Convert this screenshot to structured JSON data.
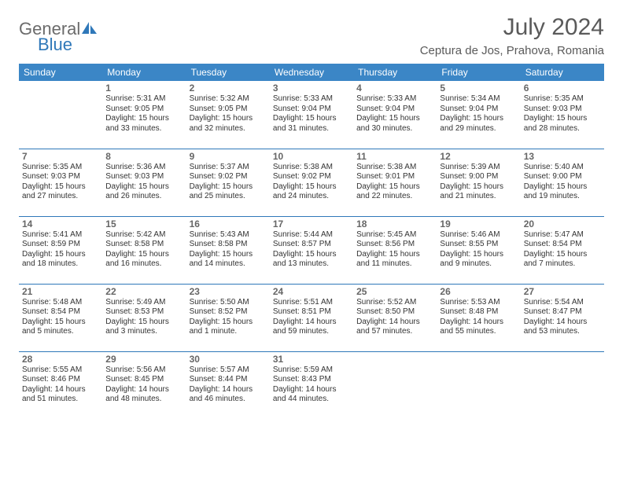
{
  "logo": {
    "general": "General",
    "blue": "Blue"
  },
  "title": "July 2024",
  "location": "Ceptura de Jos, Prahova, Romania",
  "header_bg": "#3b86c6",
  "border_color": "#2f78b9",
  "day_headers": [
    "Sunday",
    "Monday",
    "Tuesday",
    "Wednesday",
    "Thursday",
    "Friday",
    "Saturday"
  ],
  "weeks": [
    [
      null,
      {
        "n": "1",
        "sr": "Sunrise: 5:31 AM",
        "ss": "Sunset: 9:05 PM",
        "d1": "Daylight: 15 hours",
        "d2": "and 33 minutes."
      },
      {
        "n": "2",
        "sr": "Sunrise: 5:32 AM",
        "ss": "Sunset: 9:05 PM",
        "d1": "Daylight: 15 hours",
        "d2": "and 32 minutes."
      },
      {
        "n": "3",
        "sr": "Sunrise: 5:33 AM",
        "ss": "Sunset: 9:04 PM",
        "d1": "Daylight: 15 hours",
        "d2": "and 31 minutes."
      },
      {
        "n": "4",
        "sr": "Sunrise: 5:33 AM",
        "ss": "Sunset: 9:04 PM",
        "d1": "Daylight: 15 hours",
        "d2": "and 30 minutes."
      },
      {
        "n": "5",
        "sr": "Sunrise: 5:34 AM",
        "ss": "Sunset: 9:04 PM",
        "d1": "Daylight: 15 hours",
        "d2": "and 29 minutes."
      },
      {
        "n": "6",
        "sr": "Sunrise: 5:35 AM",
        "ss": "Sunset: 9:03 PM",
        "d1": "Daylight: 15 hours",
        "d2": "and 28 minutes."
      }
    ],
    [
      {
        "n": "7",
        "sr": "Sunrise: 5:35 AM",
        "ss": "Sunset: 9:03 PM",
        "d1": "Daylight: 15 hours",
        "d2": "and 27 minutes."
      },
      {
        "n": "8",
        "sr": "Sunrise: 5:36 AM",
        "ss": "Sunset: 9:03 PM",
        "d1": "Daylight: 15 hours",
        "d2": "and 26 minutes."
      },
      {
        "n": "9",
        "sr": "Sunrise: 5:37 AM",
        "ss": "Sunset: 9:02 PM",
        "d1": "Daylight: 15 hours",
        "d2": "and 25 minutes."
      },
      {
        "n": "10",
        "sr": "Sunrise: 5:38 AM",
        "ss": "Sunset: 9:02 PM",
        "d1": "Daylight: 15 hours",
        "d2": "and 24 minutes."
      },
      {
        "n": "11",
        "sr": "Sunrise: 5:38 AM",
        "ss": "Sunset: 9:01 PM",
        "d1": "Daylight: 15 hours",
        "d2": "and 22 minutes."
      },
      {
        "n": "12",
        "sr": "Sunrise: 5:39 AM",
        "ss": "Sunset: 9:00 PM",
        "d1": "Daylight: 15 hours",
        "d2": "and 21 minutes."
      },
      {
        "n": "13",
        "sr": "Sunrise: 5:40 AM",
        "ss": "Sunset: 9:00 PM",
        "d1": "Daylight: 15 hours",
        "d2": "and 19 minutes."
      }
    ],
    [
      {
        "n": "14",
        "sr": "Sunrise: 5:41 AM",
        "ss": "Sunset: 8:59 PM",
        "d1": "Daylight: 15 hours",
        "d2": "and 18 minutes."
      },
      {
        "n": "15",
        "sr": "Sunrise: 5:42 AM",
        "ss": "Sunset: 8:58 PM",
        "d1": "Daylight: 15 hours",
        "d2": "and 16 minutes."
      },
      {
        "n": "16",
        "sr": "Sunrise: 5:43 AM",
        "ss": "Sunset: 8:58 PM",
        "d1": "Daylight: 15 hours",
        "d2": "and 14 minutes."
      },
      {
        "n": "17",
        "sr": "Sunrise: 5:44 AM",
        "ss": "Sunset: 8:57 PM",
        "d1": "Daylight: 15 hours",
        "d2": "and 13 minutes."
      },
      {
        "n": "18",
        "sr": "Sunrise: 5:45 AM",
        "ss": "Sunset: 8:56 PM",
        "d1": "Daylight: 15 hours",
        "d2": "and 11 minutes."
      },
      {
        "n": "19",
        "sr": "Sunrise: 5:46 AM",
        "ss": "Sunset: 8:55 PM",
        "d1": "Daylight: 15 hours",
        "d2": "and 9 minutes."
      },
      {
        "n": "20",
        "sr": "Sunrise: 5:47 AM",
        "ss": "Sunset: 8:54 PM",
        "d1": "Daylight: 15 hours",
        "d2": "and 7 minutes."
      }
    ],
    [
      {
        "n": "21",
        "sr": "Sunrise: 5:48 AM",
        "ss": "Sunset: 8:54 PM",
        "d1": "Daylight: 15 hours",
        "d2": "and 5 minutes."
      },
      {
        "n": "22",
        "sr": "Sunrise: 5:49 AM",
        "ss": "Sunset: 8:53 PM",
        "d1": "Daylight: 15 hours",
        "d2": "and 3 minutes."
      },
      {
        "n": "23",
        "sr": "Sunrise: 5:50 AM",
        "ss": "Sunset: 8:52 PM",
        "d1": "Daylight: 15 hours",
        "d2": "and 1 minute."
      },
      {
        "n": "24",
        "sr": "Sunrise: 5:51 AM",
        "ss": "Sunset: 8:51 PM",
        "d1": "Daylight: 14 hours",
        "d2": "and 59 minutes."
      },
      {
        "n": "25",
        "sr": "Sunrise: 5:52 AM",
        "ss": "Sunset: 8:50 PM",
        "d1": "Daylight: 14 hours",
        "d2": "and 57 minutes."
      },
      {
        "n": "26",
        "sr": "Sunrise: 5:53 AM",
        "ss": "Sunset: 8:48 PM",
        "d1": "Daylight: 14 hours",
        "d2": "and 55 minutes."
      },
      {
        "n": "27",
        "sr": "Sunrise: 5:54 AM",
        "ss": "Sunset: 8:47 PM",
        "d1": "Daylight: 14 hours",
        "d2": "and 53 minutes."
      }
    ],
    [
      {
        "n": "28",
        "sr": "Sunrise: 5:55 AM",
        "ss": "Sunset: 8:46 PM",
        "d1": "Daylight: 14 hours",
        "d2": "and 51 minutes."
      },
      {
        "n": "29",
        "sr": "Sunrise: 5:56 AM",
        "ss": "Sunset: 8:45 PM",
        "d1": "Daylight: 14 hours",
        "d2": "and 48 minutes."
      },
      {
        "n": "30",
        "sr": "Sunrise: 5:57 AM",
        "ss": "Sunset: 8:44 PM",
        "d1": "Daylight: 14 hours",
        "d2": "and 46 minutes."
      },
      {
        "n": "31",
        "sr": "Sunrise: 5:59 AM",
        "ss": "Sunset: 8:43 PM",
        "d1": "Daylight: 14 hours",
        "d2": "and 44 minutes."
      },
      null,
      null,
      null
    ]
  ]
}
